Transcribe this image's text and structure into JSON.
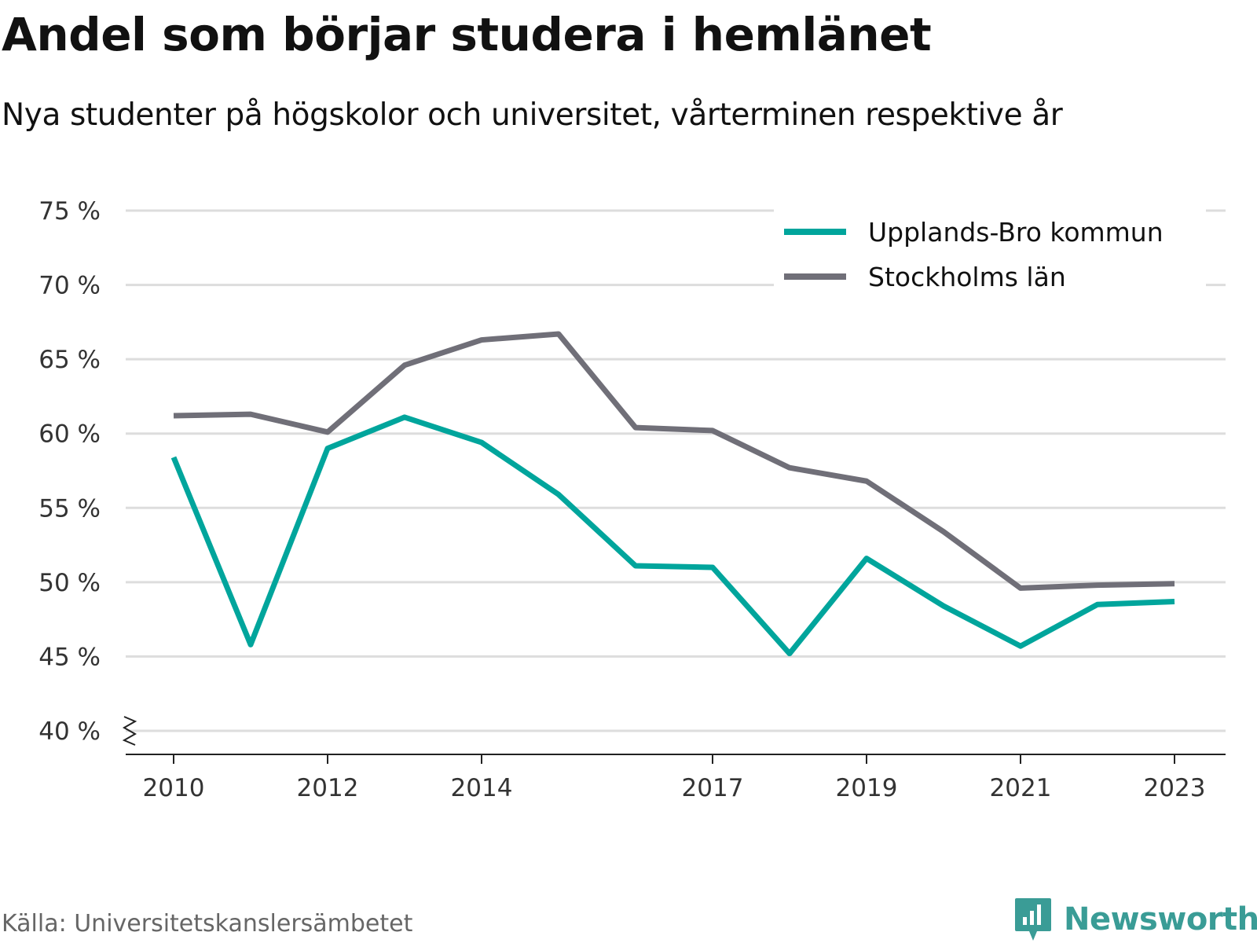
{
  "header": {
    "title": "Andel som börjar studera i hemlänet",
    "subtitle": "Nya studenter på högskolor och universitet, vårterminen respektive år"
  },
  "footer": {
    "source": "Källa: Universitetskanslersämbetet",
    "brand": "Newsworthy",
    "brand_icon": "bar-chart-bubble-icon"
  },
  "colors": {
    "upplands_bro": "#00a59c",
    "stockholm": "#706f78",
    "grid": "#dddddd",
    "brand": "#3a9c96"
  },
  "chart_data": {
    "type": "line",
    "title": "Andel som börjar studera i hemlänet",
    "subtitle": "Nya studenter på högskolor och universitet, vårterminen respektive år",
    "x": [
      2010,
      2011,
      2012,
      2013,
      2014,
      2015,
      2016,
      2017,
      2018,
      2019,
      2020,
      2021,
      2022,
      2023
    ],
    "x_ticks": [
      2010,
      2012,
      2014,
      2017,
      2019,
      2021,
      2023
    ],
    "y_ticks": [
      "40 %",
      "45 %",
      "50 %",
      "55 %",
      "60 %",
      "65 %",
      "70 %",
      "75 %"
    ],
    "y_tick_values": [
      40,
      45,
      50,
      55,
      60,
      65,
      70,
      75
    ],
    "ylim": [
      40,
      75
    ],
    "y_axis_break": true,
    "grid": true,
    "legend_position": "top-right",
    "series": [
      {
        "name": "Upplands-Bro kommun",
        "color": "#00a59c",
        "values": [
          58.4,
          45.8,
          59.0,
          61.1,
          59.4,
          55.9,
          51.1,
          51.0,
          45.2,
          51.6,
          48.4,
          45.7,
          48.5,
          48.7
        ]
      },
      {
        "name": "Stockholms län",
        "color": "#706f78",
        "values": [
          61.2,
          61.3,
          60.1,
          64.6,
          66.3,
          66.7,
          60.4,
          60.2,
          57.7,
          56.8,
          53.4,
          49.6,
          49.8,
          49.9
        ]
      }
    ]
  }
}
